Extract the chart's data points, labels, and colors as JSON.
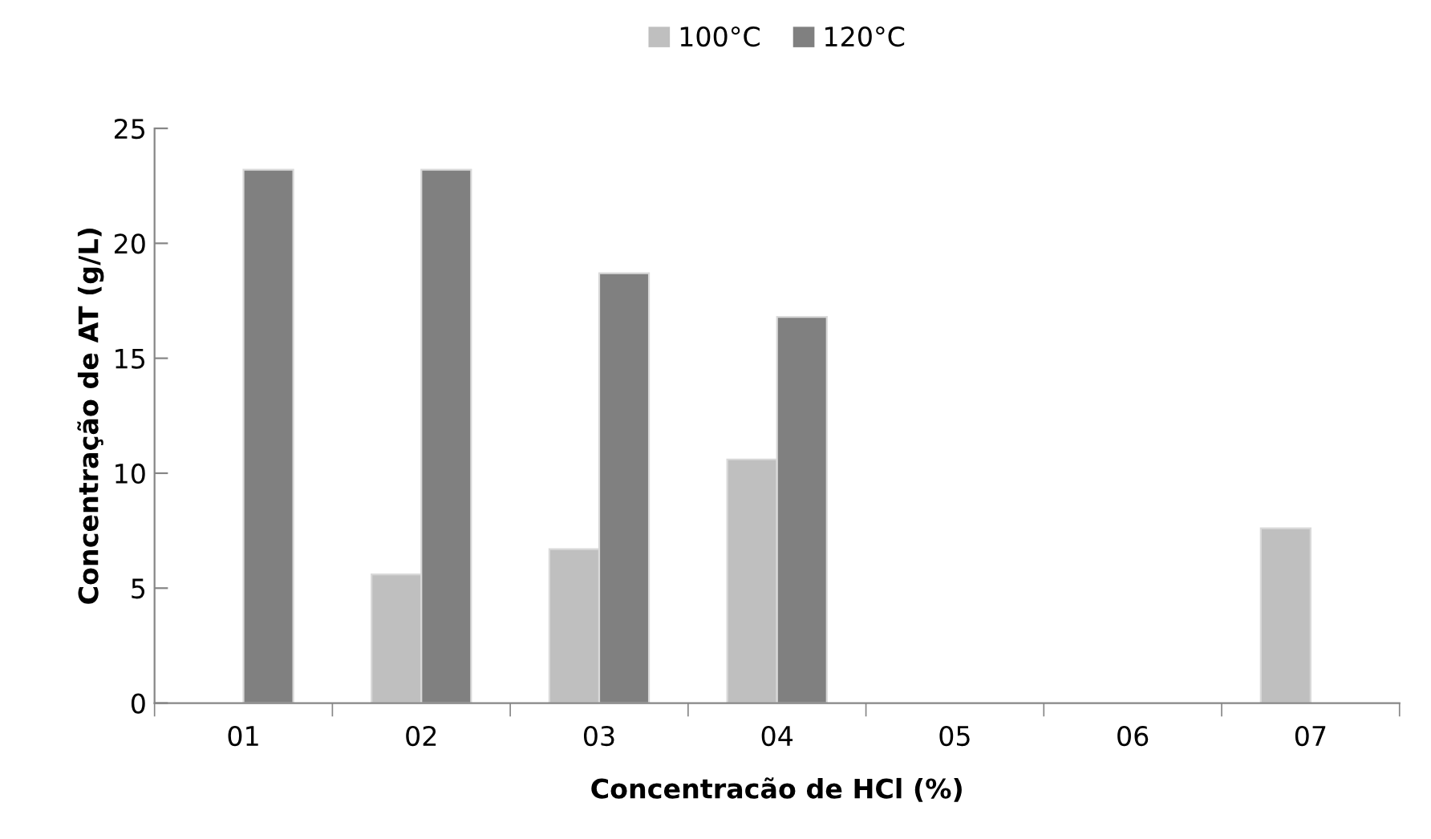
{
  "chart_data": {
    "type": "bar",
    "xlabel": "Concentracão de HCl (%)",
    "ylabel": "Concentração de AT (g/L)",
    "categories": [
      "01",
      "02",
      "03",
      "04",
      "05",
      "06",
      "07"
    ],
    "series": [
      {
        "name": "100°C",
        "color": "#bfbfbf",
        "values": [
          null,
          5.6,
          6.7,
          10.6,
          null,
          null,
          7.6
        ]
      },
      {
        "name": "120°C",
        "color": "#808080",
        "values": [
          23.2,
          23.2,
          18.7,
          16.8,
          null,
          null,
          null
        ]
      }
    ],
    "ylim": [
      0,
      25
    ],
    "yticks": [
      0,
      5,
      10,
      15,
      20,
      25
    ],
    "grid": false,
    "legend": "top"
  }
}
